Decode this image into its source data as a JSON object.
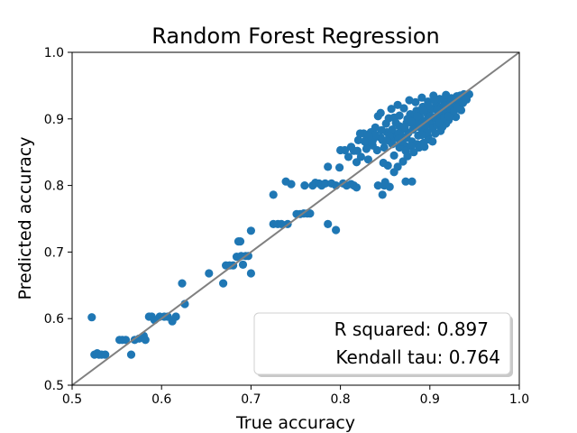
{
  "chart_data": {
    "type": "scatter",
    "title": "Random Forest Regression",
    "xlabel": "True accuracy",
    "ylabel": "Predicted accuracy",
    "xlim": [
      0.5,
      1.0
    ],
    "ylim": [
      0.5,
      1.0
    ],
    "xticks": [
      "0.5",
      "0.6",
      "0.7",
      "0.8",
      "0.9",
      "1.0"
    ],
    "yticks": [
      "0.5",
      "0.6",
      "0.7",
      "0.8",
      "0.9",
      "1.0"
    ],
    "grid": false,
    "point_color": "#1f77b4",
    "reference_line": {
      "from": [
        0.5,
        0.5
      ],
      "to": [
        1.0,
        1.0
      ],
      "color": "#808080"
    },
    "annotations": [
      "R squared: 0.897",
      "Kendall tau: 0.764"
    ],
    "annotation_box_placement": "bottom-right",
    "points": [
      [
        0.522,
        0.602
      ],
      [
        0.525,
        0.546
      ],
      [
        0.528,
        0.548
      ],
      [
        0.53,
        0.546
      ],
      [
        0.533,
        0.546
      ],
      [
        0.537,
        0.546
      ],
      [
        0.553,
        0.568
      ],
      [
        0.556,
        0.568
      ],
      [
        0.56,
        0.568
      ],
      [
        0.566,
        0.546
      ],
      [
        0.57,
        0.568
      ],
      [
        0.575,
        0.57
      ],
      [
        0.58,
        0.574
      ],
      [
        0.582,
        0.568
      ],
      [
        0.586,
        0.603
      ],
      [
        0.589,
        0.603
      ],
      [
        0.592,
        0.598
      ],
      [
        0.598,
        0.603
      ],
      [
        0.603,
        0.603
      ],
      [
        0.607,
        0.603
      ],
      [
        0.612,
        0.596
      ],
      [
        0.616,
        0.603
      ],
      [
        0.623,
        0.653
      ],
      [
        0.626,
        0.622
      ],
      [
        0.653,
        0.668
      ],
      [
        0.669,
        0.653
      ],
      [
        0.672,
        0.68
      ],
      [
        0.676,
        0.68
      ],
      [
        0.68,
        0.68
      ],
      [
        0.684,
        0.693
      ],
      [
        0.686,
        0.716
      ],
      [
        0.688,
        0.716
      ],
      [
        0.689,
        0.694
      ],
      [
        0.691,
        0.681
      ],
      [
        0.694,
        0.694
      ],
      [
        0.697,
        0.694
      ],
      [
        0.7,
        0.732
      ],
      [
        0.7,
        0.668
      ],
      [
        0.725,
        0.786
      ],
      [
        0.725,
        0.742
      ],
      [
        0.73,
        0.742
      ],
      [
        0.734,
        0.742
      ],
      [
        0.739,
        0.806
      ],
      [
        0.741,
        0.742
      ],
      [
        0.745,
        0.802
      ],
      [
        0.751,
        0.757
      ],
      [
        0.755,
        0.757
      ],
      [
        0.759,
        0.758
      ],
      [
        0.763,
        0.758
      ],
      [
        0.766,
        0.758
      ],
      [
        0.76,
        0.8
      ],
      [
        0.769,
        0.8
      ],
      [
        0.772,
        0.804
      ],
      [
        0.776,
        0.803
      ],
      [
        0.779,
        0.8
      ],
      [
        0.783,
        0.803
      ],
      [
        0.786,
        0.742
      ],
      [
        0.795,
        0.733
      ],
      [
        0.786,
        0.828
      ],
      [
        0.79,
        0.803
      ],
      [
        0.795,
        0.8
      ],
      [
        0.799,
        0.827
      ],
      [
        0.803,
        0.803
      ],
      [
        0.807,
        0.8
      ],
      [
        0.812,
        0.802
      ],
      [
        0.815,
        0.8
      ],
      [
        0.818,
        0.797
      ],
      [
        0.8,
        0.853
      ],
      [
        0.805,
        0.853
      ],
      [
        0.809,
        0.843
      ],
      [
        0.812,
        0.858
      ],
      [
        0.815,
        0.852
      ],
      [
        0.818,
        0.835
      ],
      [
        0.82,
        0.868
      ],
      [
        0.823,
        0.843
      ],
      [
        0.826,
        0.878
      ],
      [
        0.83,
        0.862
      ],
      [
        0.831,
        0.839
      ],
      [
        0.834,
        0.88
      ],
      [
        0.838,
        0.872
      ],
      [
        0.841,
        0.853
      ],
      [
        0.842,
        0.904
      ],
      [
        0.845,
        0.909
      ],
      [
        0.847,
        0.868
      ],
      [
        0.849,
        0.857
      ],
      [
        0.852,
        0.88
      ],
      [
        0.854,
        0.901
      ],
      [
        0.856,
        0.866
      ],
      [
        0.858,
        0.884
      ],
      [
        0.86,
        0.872
      ],
      [
        0.86,
        0.902
      ],
      [
        0.863,
        0.875
      ],
      [
        0.866,
        0.889
      ],
      [
        0.866,
        0.905
      ],
      [
        0.869,
        0.873
      ],
      [
        0.871,
        0.916
      ],
      [
        0.872,
        0.86
      ],
      [
        0.874,
        0.894
      ],
      [
        0.876,
        0.879
      ],
      [
        0.878,
        0.907
      ],
      [
        0.88,
        0.866
      ],
      [
        0.882,
        0.898
      ],
      [
        0.884,
        0.888
      ],
      [
        0.885,
        0.912
      ],
      [
        0.887,
        0.875
      ],
      [
        0.889,
        0.902
      ],
      [
        0.89,
        0.886
      ],
      [
        0.892,
        0.918
      ],
      [
        0.894,
        0.882
      ],
      [
        0.895,
        0.897
      ],
      [
        0.897,
        0.908
      ],
      [
        0.898,
        0.873
      ],
      [
        0.9,
        0.894
      ],
      [
        0.902,
        0.915
      ],
      [
        0.903,
        0.886
      ],
      [
        0.905,
        0.902
      ],
      [
        0.907,
        0.922
      ],
      [
        0.908,
        0.891
      ],
      [
        0.91,
        0.91
      ],
      [
        0.912,
        0.882
      ],
      [
        0.913,
        0.918
      ],
      [
        0.915,
        0.9
      ],
      [
        0.917,
        0.926
      ],
      [
        0.918,
        0.893
      ],
      [
        0.92,
        0.912
      ],
      [
        0.922,
        0.922
      ],
      [
        0.924,
        0.904
      ],
      [
        0.926,
        0.93
      ],
      [
        0.928,
        0.915
      ],
      [
        0.93,
        0.934
      ],
      [
        0.932,
        0.92
      ],
      [
        0.934,
        0.935
      ],
      [
        0.936,
        0.929
      ],
      [
        0.938,
        0.937
      ],
      [
        0.94,
        0.934
      ],
      [
        0.942,
        0.936
      ],
      [
        0.944,
        0.937
      ],
      [
        0.935,
        0.913
      ],
      [
        0.929,
        0.903
      ],
      [
        0.921,
        0.898
      ],
      [
        0.914,
        0.888
      ],
      [
        0.906,
        0.878
      ],
      [
        0.899,
        0.869
      ],
      [
        0.893,
        0.864
      ],
      [
        0.886,
        0.862
      ],
      [
        0.879,
        0.859
      ],
      [
        0.873,
        0.852
      ],
      [
        0.866,
        0.857
      ],
      [
        0.86,
        0.845
      ],
      [
        0.853,
        0.83
      ],
      [
        0.848,
        0.834
      ],
      [
        0.842,
        0.8
      ],
      [
        0.847,
        0.786
      ],
      [
        0.849,
        0.8
      ],
      [
        0.85,
        0.805
      ],
      [
        0.855,
        0.798
      ],
      [
        0.86,
        0.82
      ],
      [
        0.864,
        0.828
      ],
      [
        0.87,
        0.836
      ],
      [
        0.875,
        0.844
      ],
      [
        0.882,
        0.85
      ],
      [
        0.888,
        0.857
      ],
      [
        0.894,
        0.858
      ],
      [
        0.873,
        0.806
      ],
      [
        0.88,
        0.806
      ],
      [
        0.857,
        0.915
      ],
      [
        0.864,
        0.921
      ],
      [
        0.877,
        0.928
      ],
      [
        0.884,
        0.925
      ],
      [
        0.891,
        0.932
      ],
      [
        0.898,
        0.926
      ],
      [
        0.904,
        0.935
      ],
      [
        0.911,
        0.93
      ],
      [
        0.918,
        0.936
      ],
      [
        0.924,
        0.931
      ],
      [
        0.903,
        0.866
      ],
      [
        0.897,
        0.88
      ],
      [
        0.891,
        0.876
      ],
      [
        0.851,
        0.893
      ],
      [
        0.839,
        0.887
      ],
      [
        0.836,
        0.86
      ],
      [
        0.829,
        0.855
      ],
      [
        0.822,
        0.878
      ],
      [
        0.836,
        0.867
      ],
      [
        0.875,
        0.9
      ],
      [
        0.881,
        0.892
      ],
      [
        0.888,
        0.912
      ],
      [
        0.869,
        0.884
      ],
      [
        0.862,
        0.894
      ],
      [
        0.855,
        0.875
      ],
      [
        0.846,
        0.883
      ],
      [
        0.907,
        0.9
      ],
      [
        0.912,
        0.906
      ],
      [
        0.918,
        0.91
      ],
      [
        0.923,
        0.916
      ],
      [
        0.928,
        0.922
      ],
      [
        0.933,
        0.928
      ],
      [
        0.939,
        0.93
      ],
      [
        0.916,
        0.92
      ],
      [
        0.908,
        0.913
      ],
      [
        0.901,
        0.904
      ],
      [
        0.895,
        0.89
      ],
      [
        0.887,
        0.895
      ],
      [
        0.881,
        0.884
      ],
      [
        0.874,
        0.872
      ],
      [
        0.868,
        0.866
      ],
      [
        0.865,
        0.878
      ],
      [
        0.858,
        0.862
      ],
      [
        0.852,
        0.868
      ],
      [
        0.845,
        0.872
      ],
      [
        0.839,
        0.876
      ],
      [
        0.832,
        0.874
      ],
      [
        0.827,
        0.866
      ],
      [
        0.819,
        0.852
      ],
      [
        0.898,
        0.92
      ],
      [
        0.905,
        0.928
      ],
      [
        0.893,
        0.912
      ],
      [
        0.886,
        0.904
      ],
      [
        0.879,
        0.896
      ],
      [
        0.872,
        0.888
      ],
      [
        0.865,
        0.87
      ],
      [
        0.91,
        0.895
      ],
      [
        0.916,
        0.902
      ],
      [
        0.921,
        0.904
      ],
      [
        0.927,
        0.912
      ],
      [
        0.931,
        0.918
      ],
      [
        0.937,
        0.924
      ],
      [
        0.941,
        0.929
      ]
    ]
  }
}
